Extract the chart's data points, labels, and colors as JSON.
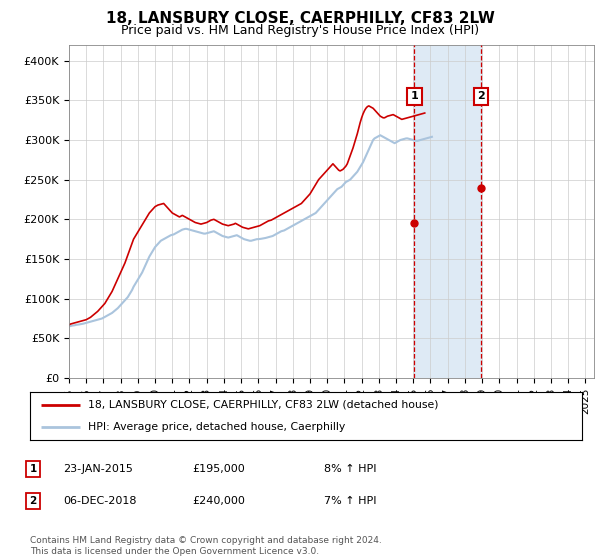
{
  "title": "18, LANSBURY CLOSE, CAERPHILLY, CF83 2LW",
  "subtitle": "Price paid vs. HM Land Registry's House Price Index (HPI)",
  "hpi_color": "#aac4dd",
  "price_color": "#cc0000",
  "highlight_color": "#deeaf5",
  "sale_box_color": "#cc0000",
  "sale1_year": 2015.06,
  "sale1_price": 195000,
  "sale1_label": "1",
  "sale2_year": 2018.92,
  "sale2_price": 240000,
  "sale2_label": "2",
  "ylim": [
    0,
    420000
  ],
  "yticks": [
    0,
    50000,
    100000,
    150000,
    200000,
    250000,
    300000,
    350000,
    400000
  ],
  "ytick_labels": [
    "£0",
    "£50K",
    "£100K",
    "£150K",
    "£200K",
    "£250K",
    "£300K",
    "£350K",
    "£400K"
  ],
  "legend_price_label": "18, LANSBURY CLOSE, CAERPHILLY, CF83 2LW (detached house)",
  "legend_hpi_label": "HPI: Average price, detached house, Caerphilly",
  "table_rows": [
    {
      "num": "1",
      "date": "23-JAN-2015",
      "price": "£195,000",
      "hpi": "8% ↑ HPI"
    },
    {
      "num": "2",
      "date": "06-DEC-2018",
      "price": "£240,000",
      "hpi": "7% ↑ HPI"
    }
  ],
  "footer": "Contains HM Land Registry data © Crown copyright and database right 2024.\nThis data is licensed under the Open Government Licence v3.0.",
  "background_color": "#ffffff",
  "grid_color": "#cccccc",
  "hpi_monthly": [
    65000,
    65500,
    66000,
    66200,
    66500,
    67000,
    67200,
    67500,
    67800,
    68000,
    68500,
    69000,
    69500,
    70000,
    70500,
    71000,
    71500,
    72000,
    72500,
    73000,
    73500,
    74000,
    74500,
    75000,
    76000,
    77000,
    78000,
    79000,
    80000,
    81000,
    82000,
    83500,
    85000,
    86500,
    88000,
    90000,
    92000,
    94000,
    96000,
    98000,
    100000,
    102000,
    105000,
    108000,
    111000,
    115000,
    118000,
    121000,
    124000,
    127000,
    130000,
    133000,
    137000,
    141000,
    145000,
    149000,
    153000,
    156000,
    159000,
    162000,
    165000,
    167000,
    169000,
    171000,
    173000,
    174000,
    175000,
    176000,
    177000,
    178000,
    179000,
    180000,
    180500,
    181000,
    182000,
    183000,
    184000,
    185000,
    186000,
    187000,
    187500,
    188000,
    188000,
    187500,
    187000,
    186500,
    186000,
    185500,
    185000,
    184500,
    184000,
    183500,
    183000,
    182500,
    182000,
    182000,
    182500,
    183000,
    183500,
    184000,
    184500,
    185000,
    184000,
    183000,
    182000,
    181000,
    180000,
    179000,
    178500,
    178000,
    177500,
    177000,
    177500,
    178000,
    178500,
    179000,
    179500,
    180000,
    179000,
    178000,
    177000,
    176000,
    175000,
    174500,
    174000,
    173500,
    173000,
    173000,
    173500,
    174000,
    174500,
    175000,
    175000,
    175200,
    175500,
    175800,
    176000,
    176500,
    177000,
    177500,
    178000,
    178500,
    179000,
    180000,
    181000,
    182000,
    183000,
    184000,
    185000,
    185500,
    186000,
    187000,
    188000,
    189000,
    190000,
    191000,
    192000,
    193000,
    194000,
    195000,
    196000,
    197000,
    198000,
    199000,
    200000,
    201000,
    202000,
    203000,
    204000,
    205000,
    206000,
    207000,
    208000,
    210000,
    212000,
    214000,
    216000,
    218000,
    220000,
    222000,
    224000,
    226000,
    228000,
    230000,
    232000,
    234000,
    236000,
    238000,
    239000,
    240000,
    241000,
    243000,
    245000,
    247000,
    248000,
    249000,
    250000,
    252000,
    254000,
    256000,
    258000,
    260000,
    263000,
    266000,
    269000,
    272000,
    276000,
    280000,
    284000,
    288000,
    292000,
    296000,
    300000,
    302000,
    303000,
    304000,
    305000,
    306000,
    305000,
    304000,
    303000,
    302000,
    301000,
    300000,
    299000,
    298000,
    297000,
    296000,
    297000,
    298000,
    299000,
    300000,
    300500,
    301000,
    301500,
    302000,
    302000,
    301500,
    301000,
    300500,
    300000,
    299500,
    299000,
    299000,
    299500,
    300000,
    300500,
    301000,
    301500,
    302000,
    302500,
    303000,
    303500,
    304000
  ],
  "price_monthly": [
    67000,
    68000,
    68500,
    69000,
    69500,
    70000,
    70500,
    71000,
    71500,
    72000,
    72500,
    73000,
    73500,
    74500,
    75500,
    76500,
    78000,
    79500,
    81000,
    82500,
    84000,
    86000,
    88000,
    90000,
    92000,
    94000,
    97000,
    100000,
    103000,
    106000,
    109000,
    113000,
    117000,
    121000,
    125000,
    129000,
    133000,
    137000,
    141000,
    145000,
    150000,
    155000,
    160000,
    165000,
    170000,
    175000,
    178000,
    181000,
    184000,
    187000,
    190000,
    193000,
    196000,
    199000,
    202000,
    205000,
    208000,
    210000,
    212000,
    214000,
    216000,
    217000,
    218000,
    218500,
    219000,
    219500,
    220000,
    218000,
    216000,
    214000,
    212000,
    210000,
    208000,
    207000,
    206000,
    205000,
    204000,
    203000,
    204000,
    205000,
    204000,
    203000,
    202000,
    201000,
    200000,
    199000,
    198000,
    197000,
    196000,
    195500,
    195000,
    194500,
    194000,
    194500,
    195000,
    195500,
    196000,
    197000,
    198000,
    199000,
    199500,
    200000,
    199000,
    198000,
    197000,
    196000,
    195000,
    194000,
    193500,
    193000,
    192500,
    192000,
    192500,
    193000,
    193500,
    194000,
    195000,
    194000,
    193000,
    192000,
    191000,
    190000,
    189500,
    189000,
    188500,
    188000,
    188500,
    189000,
    189500,
    190000,
    190500,
    191000,
    191500,
    192000,
    193000,
    194000,
    195000,
    196000,
    197000,
    198000,
    198500,
    199000,
    200000,
    201000,
    202000,
    203000,
    204000,
    205000,
    206000,
    207000,
    208000,
    209000,
    210000,
    211000,
    212000,
    213000,
    214000,
    215000,
    216000,
    217000,
    218000,
    219000,
    220000,
    222000,
    224000,
    226000,
    228000,
    230000,
    232000,
    235000,
    238000,
    241000,
    244000,
    247000,
    250000,
    252000,
    254000,
    256000,
    258000,
    260000,
    262000,
    264000,
    266000,
    268000,
    270000,
    268000,
    266000,
    264000,
    262000,
    261000,
    262000,
    263000,
    265000,
    267000,
    270000,
    275000,
    280000,
    285000,
    290000,
    296000,
    302000,
    308000,
    315000,
    322000,
    328000,
    333000,
    337000,
    340000,
    342000,
    343000,
    342000,
    341000,
    340000,
    338000,
    336000,
    334000,
    332000,
    330000,
    329000,
    328000,
    328000,
    329000,
    330000,
    330500,
    331000,
    331500,
    332000,
    331000,
    330000,
    329000,
    328000,
    327000,
    326000,
    326500,
    327000,
    327500,
    328000,
    328500,
    329000,
    329500,
    330000,
    330500,
    331000,
    331500,
    332000,
    332500,
    333000,
    333500,
    334000
  ]
}
